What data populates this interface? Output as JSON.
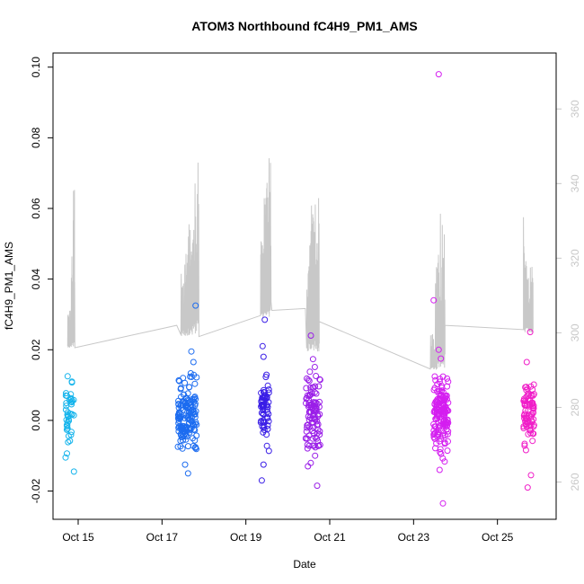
{
  "chart_data": {
    "type": "scatter",
    "title": "ATOM3 Northbound fC4H9_PM1_AMS",
    "xlabel": "Date",
    "ylabel": "fC4H9_PM1_AMS",
    "xlim": [
      14.4,
      26.4
    ],
    "ylim": [
      -0.028,
      0.104
    ],
    "y_ticks": [
      -0.02,
      0.0,
      0.02,
      0.04,
      0.06,
      0.08,
      0.1
    ],
    "y_tick_labels": [
      "-0.02",
      "0.00",
      "0.02",
      "0.04",
      "0.06",
      "0.08",
      "0.10"
    ],
    "x_ticks": [
      15,
      17,
      19,
      21,
      23,
      25
    ],
    "x_tick_labels": [
      "Oct 15",
      "Oct 17",
      "Oct 19",
      "Oct 21",
      "Oct 23",
      "Oct 25"
    ],
    "right_axis": {
      "ylim": [
        250,
        375
      ],
      "ticks": [
        260,
        280,
        300,
        320,
        340,
        360
      ],
      "tick_labels": [
        "260",
        "280",
        "300",
        "320",
        "340",
        "360"
      ],
      "color": "#c8c8c8"
    },
    "grid": false,
    "clusters": [
      {
        "date": 14.8,
        "width": 0.2,
        "n": 40,
        "color": "#14b4ec",
        "spread": 0.0045,
        "seed": 11,
        "outliers": [
          [
            14.75,
            0.0125
          ],
          [
            14.85,
            0.011
          ],
          [
            14.7,
            -0.0105
          ],
          [
            14.9,
            -0.0145
          ]
        ]
      },
      {
        "date": 17.6,
        "width": 0.45,
        "n": 150,
        "color": "#1c6cf0",
        "spread": 0.0045,
        "seed": 23,
        "outliers": [
          [
            17.8,
            0.0325
          ],
          [
            17.7,
            0.0195
          ],
          [
            17.75,
            0.0165
          ],
          [
            17.55,
            -0.0125
          ],
          [
            17.62,
            -0.015
          ],
          [
            17.5,
            0.012
          ]
        ]
      },
      {
        "date": 19.45,
        "width": 0.2,
        "n": 60,
        "color": "#3a1ee6",
        "spread": 0.0045,
        "seed": 37,
        "outliers": [
          [
            19.45,
            0.0285
          ],
          [
            19.4,
            0.021
          ],
          [
            19.42,
            0.018
          ],
          [
            19.38,
            -0.017
          ],
          [
            19.42,
            -0.0125
          ]
        ]
      },
      {
        "date": 20.6,
        "width": 0.35,
        "n": 100,
        "color": "#9a1ee8",
        "spread": 0.006,
        "seed": 41,
        "outliers": [
          [
            20.55,
            0.024
          ],
          [
            20.7,
            -0.0185
          ],
          [
            20.48,
            -0.013
          ],
          [
            20.65,
            -0.01
          ]
        ]
      },
      {
        "date": 23.65,
        "width": 0.35,
        "n": 150,
        "color": "#d41ef0",
        "spread": 0.0048,
        "seed": 53,
        "outliers": [
          [
            23.6,
            0.098
          ],
          [
            23.48,
            0.034
          ],
          [
            23.6,
            0.02
          ],
          [
            23.65,
            0.0175
          ],
          [
            23.7,
            -0.0235
          ],
          [
            23.62,
            -0.014
          ]
        ]
      },
      {
        "date": 25.75,
        "width": 0.25,
        "n": 80,
        "color": "#f01ec8",
        "spread": 0.0045,
        "seed": 67,
        "outliers": [
          [
            25.78,
            0.025
          ],
          [
            25.7,
            0.0165
          ],
          [
            25.72,
            -0.019
          ],
          [
            25.8,
            -0.0155
          ]
        ]
      }
    ],
    "secondary_series": {
      "name": "right-axis trace",
      "color": "#c8c8c8",
      "segments": [
        {
          "start": 14.75,
          "end": 14.92,
          "base": 296,
          "peaks": [
            310,
            307,
            322,
            340
          ]
        },
        {
          "start": 17.45,
          "end": 17.88,
          "base": 299,
          "peaks": [
            316,
            322,
            336,
            345,
            349
          ]
        },
        {
          "start": 19.35,
          "end": 19.6,
          "base": 304,
          "peaks": [
            326,
            343,
            350
          ]
        },
        {
          "start": 20.45,
          "end": 20.75,
          "base": 295,
          "peaks": [
            325,
            336,
            342
          ]
        },
        {
          "start": 23.4,
          "end": 23.75,
          "base": 290,
          "peaks": [
            300,
            321,
            333
          ]
        },
        {
          "start": 25.62,
          "end": 25.85,
          "base": 300,
          "peaks": [
            329,
            315,
            318
          ]
        }
      ],
      "gap_points": [
        [
          14.92,
          296
        ],
        [
          17.35,
          302
        ],
        [
          17.88,
          299
        ],
        [
          19.55,
          332
        ],
        [
          19.62,
          306
        ],
        [
          20.42,
          306.5
        ],
        [
          20.75,
          303
        ],
        [
          23.5,
          292
        ],
        [
          23.75,
          302
        ],
        [
          25.62,
          331
        ]
      ]
    }
  }
}
